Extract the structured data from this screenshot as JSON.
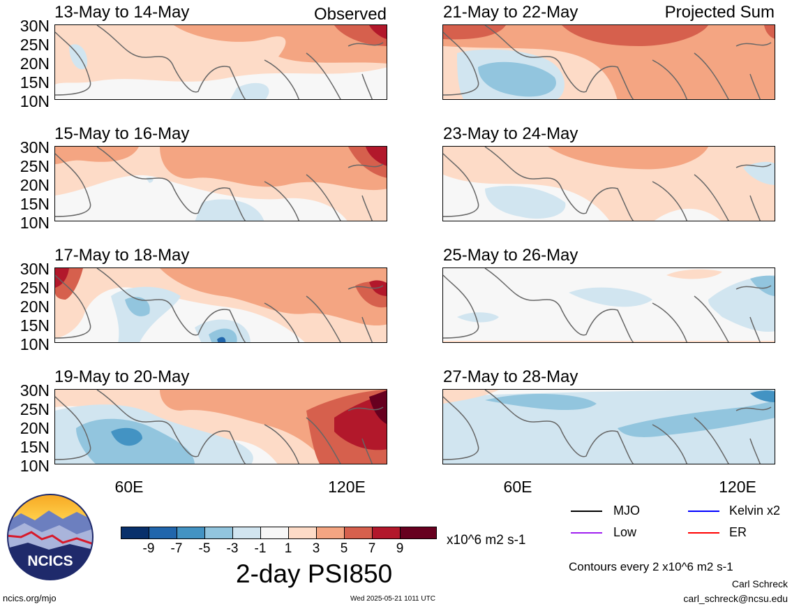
{
  "header": {
    "observed_label": "Observed",
    "projected_label": "Projected Sum"
  },
  "panels": [
    {
      "title": "13-May to 14-May"
    },
    {
      "title": "15-May to 16-May"
    },
    {
      "title": "17-May to 18-May"
    },
    {
      "title": "19-May to 20-May"
    },
    {
      "title": "21-May to 22-May"
    },
    {
      "title": "23-May to 24-May"
    },
    {
      "title": "25-May to 26-May"
    },
    {
      "title": "27-May to 28-May"
    }
  ],
  "axes": {
    "lat_labels": [
      "30N",
      "25N",
      "20N",
      "15N",
      "10N"
    ],
    "lon_labels": [
      "60E",
      "120E"
    ]
  },
  "colorbar": {
    "ticks": [
      "-9",
      "-7",
      "-5",
      "-3",
      "-1",
      "1",
      "3",
      "5",
      "7",
      "9"
    ],
    "colors": [
      "#08306b",
      "#2166ac",
      "#4393c3",
      "#92c5de",
      "#d1e5f0",
      "#f7f7f7",
      "#fddbc7",
      "#f4a582",
      "#d6604d",
      "#b2182b",
      "#67001f"
    ],
    "units": "x10^6 m2 s-1",
    "title": "2-day PSI850"
  },
  "legend": {
    "items": [
      {
        "label": "MJO",
        "color": "#000000"
      },
      {
        "label": "Kelvin x2",
        "color": "#0000ff"
      },
      {
        "label": "Low",
        "color": "#a020f0"
      },
      {
        "label": "ER",
        "color": "#ff0000"
      }
    ],
    "contour_note": "Contours every 2 x10^6 m2 s-1"
  },
  "footer": {
    "logo_text": "NCICS",
    "site": "ncics.org/mjo",
    "timestamp": "Wed 2025-05-21 1011 UTC",
    "author": "Carl Schreck",
    "email": "carl_schreck@ncsu.edu"
  }
}
